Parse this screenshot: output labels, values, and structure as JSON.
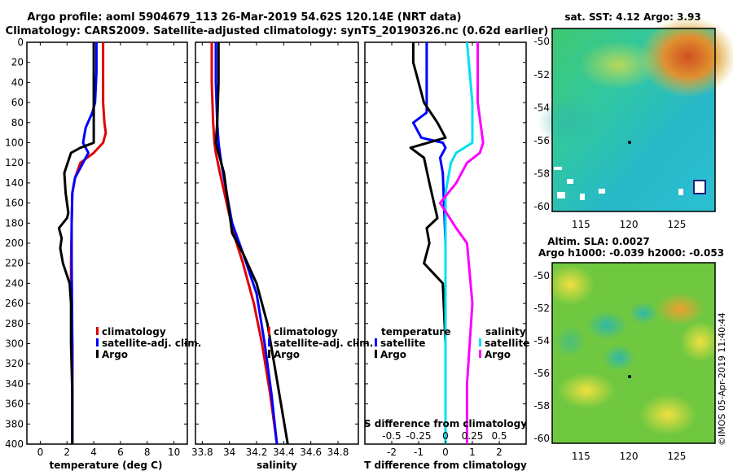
{
  "title": {
    "line1": "Argo profile: aoml 5904679_113 26-Mar-2019 54.62S 120.14E (NRT data)",
    "line2": "Climatology: CARS2009. Satellite-adjusted climatology: synTS_20190326.nc (0.62d earlier)"
  },
  "colors": {
    "climatology": "#e00000",
    "satellite": "#0000ff",
    "argo": "#000000",
    "satellite_s": "#00e0f0",
    "argo_s": "#ff00ff"
  },
  "chart_data": [
    {
      "type": "line",
      "name": "temperature-panel",
      "xlabel": "temperature (deg C)",
      "ylabel": "",
      "xlim": [
        -1,
        11
      ],
      "ylim": [
        400,
        0
      ],
      "xticks": [
        "0",
        "2",
        "4",
        "6",
        "8",
        "10"
      ],
      "yticks": [
        "0",
        "20",
        "40",
        "60",
        "80",
        "100",
        "120",
        "140",
        "160",
        "180",
        "200",
        "220",
        "240",
        "260",
        "280",
        "300",
        "320",
        "340",
        "360",
        "380",
        "400"
      ],
      "legend": [
        "climatology",
        "satellite-adj. clim.",
        "Argo"
      ],
      "series": [
        {
          "name": "climatology",
          "x": [
            4.7,
            4.7,
            4.7,
            4.8,
            4.9,
            4.7,
            4.0,
            3.0,
            2.6,
            2.4,
            2.35,
            2.3,
            2.3,
            2.4,
            2.4
          ],
          "y": [
            0,
            30,
            60,
            80,
            90,
            100,
            110,
            120,
            135,
            150,
            180,
            220,
            250,
            300,
            400
          ]
        },
        {
          "name": "satellite-adj. clim.",
          "x": [
            4.2,
            4.2,
            4.1,
            3.9,
            3.4,
            3.2,
            3.6,
            3.2,
            2.6,
            2.4,
            2.35,
            2.35,
            2.4,
            2.4
          ],
          "y": [
            0,
            30,
            60,
            70,
            85,
            100,
            110,
            120,
            135,
            150,
            180,
            220,
            300,
            400
          ]
        },
        {
          "name": "Argo",
          "x": [
            4.0,
            4.0,
            4.0,
            4.0,
            3.0,
            2.3,
            1.8,
            1.9,
            2.1,
            2.0,
            1.4,
            1.6,
            1.5,
            1.7,
            2.2,
            2.3,
            2.3,
            2.4,
            2.4
          ],
          "y": [
            0,
            30,
            60,
            100,
            105,
            110,
            130,
            150,
            170,
            175,
            185,
            195,
            205,
            220,
            240,
            260,
            300,
            350,
            400
          ]
        }
      ]
    },
    {
      "type": "line",
      "name": "salinity-panel",
      "xlabel": "salinity",
      "ylabel": "",
      "xlim": [
        33.75,
        34.95
      ],
      "ylim": [
        400,
        0
      ],
      "xticks": [
        "33.8",
        "34",
        "34.2",
        "34.4",
        "34.6",
        "34.8"
      ],
      "legend": [
        "climatology",
        "satellite-adj. clim.",
        "Argo"
      ],
      "series": [
        {
          "name": "climatology",
          "x": [
            33.87,
            33.87,
            33.88,
            33.89,
            33.9,
            33.93,
            33.98,
            34.03,
            34.1,
            34.18,
            34.24,
            34.3,
            34.35
          ],
          "y": [
            0,
            40,
            80,
            100,
            110,
            130,
            160,
            190,
            220,
            260,
            300,
            350,
            400
          ]
        },
        {
          "name": "satellite-adj. clim.",
          "x": [
            33.9,
            33.9,
            33.91,
            33.92,
            33.94,
            33.98,
            34.02,
            34.1,
            34.2,
            34.26,
            34.31,
            34.35
          ],
          "y": [
            0,
            40,
            80,
            100,
            120,
            150,
            180,
            210,
            250,
            300,
            350,
            400
          ]
        },
        {
          "name": "Argo",
          "x": [
            33.92,
            33.92,
            33.91,
            33.9,
            33.92,
            33.96,
            33.98,
            34.0,
            34.02,
            34.1,
            34.2,
            34.28,
            34.33,
            34.38,
            34.43
          ],
          "y": [
            0,
            40,
            80,
            100,
            110,
            130,
            150,
            170,
            190,
            210,
            240,
            280,
            320,
            360,
            400
          ]
        }
      ]
    },
    {
      "type": "line",
      "name": "difference-panel",
      "xlabel": "T difference from climatology",
      "xlabel2": "S difference from climatology",
      "ylabel": "",
      "xlim": [
        -3,
        3
      ],
      "ylim": [
        400,
        0
      ],
      "xticks": [
        "-2",
        "-1",
        "0",
        "1",
        "2"
      ],
      "xticks2": [
        "-0.5",
        "-0.25",
        "0",
        "0.25",
        "0.5"
      ],
      "legend_left_title": "temperature",
      "legend_right_title": "salinity",
      "legend_left": [
        "satellite",
        "Argo"
      ],
      "legend_right": [
        "satellite",
        "Argo"
      ],
      "series": [
        {
          "name": "T satellite",
          "x": [
            -0.7,
            -0.7,
            -0.7,
            -0.7,
            -1.2,
            -0.9,
            -0.1,
            0,
            -0.2,
            -0.1,
            0,
            0,
            0
          ],
          "y": [
            0,
            30,
            60,
            70,
            80,
            95,
            100,
            105,
            115,
            130,
            200,
            300,
            400
          ]
        },
        {
          "name": "T Argo",
          "x": [
            -1.2,
            -1.2,
            -0.8,
            -0.3,
            0,
            -1.3,
            -0.8,
            -0.6,
            -0.3,
            -0.7,
            -0.6,
            -0.8,
            -0.1,
            0,
            0
          ],
          "y": [
            0,
            20,
            60,
            80,
            95,
            105,
            115,
            140,
            175,
            185,
            200,
            220,
            240,
            300,
            400
          ]
        },
        {
          "name": "S satellite",
          "x": [
            0.2,
            0.25,
            0.25,
            0.1,
            0.05,
            0,
            0,
            0,
            0
          ],
          "y": [
            0,
            60,
            100,
            110,
            120,
            150,
            250,
            350,
            400
          ]
        },
        {
          "name": "S Argo",
          "x": [
            0.3,
            0.3,
            0.35,
            0.32,
            0.2,
            0.1,
            -0.05,
            0.1,
            0.2,
            0.25,
            0.2,
            0.2
          ],
          "y": [
            0,
            60,
            100,
            110,
            120,
            140,
            160,
            185,
            200,
            260,
            340,
            400
          ]
        }
      ]
    }
  ],
  "maps": {
    "sst": {
      "title": "sat. SST: 4.12 Argo: 3.93",
      "xticks": [
        "115",
        "120",
        "125"
      ],
      "yticks": [
        "-50",
        "-52",
        "-54",
        "-56",
        "-58",
        "-60"
      ]
    },
    "sla": {
      "title1": "Altim. SLA: 0.0027",
      "title2": "Argo h1000: -0.039 h2000: -0.053",
      "xticks": [
        "115",
        "120",
        "125"
      ],
      "yticks": [
        "-50",
        "-52",
        "-54",
        "-56",
        "-58",
        "-60"
      ]
    }
  },
  "credit": "©IMOS 05-Apr-2019 11:40:44"
}
